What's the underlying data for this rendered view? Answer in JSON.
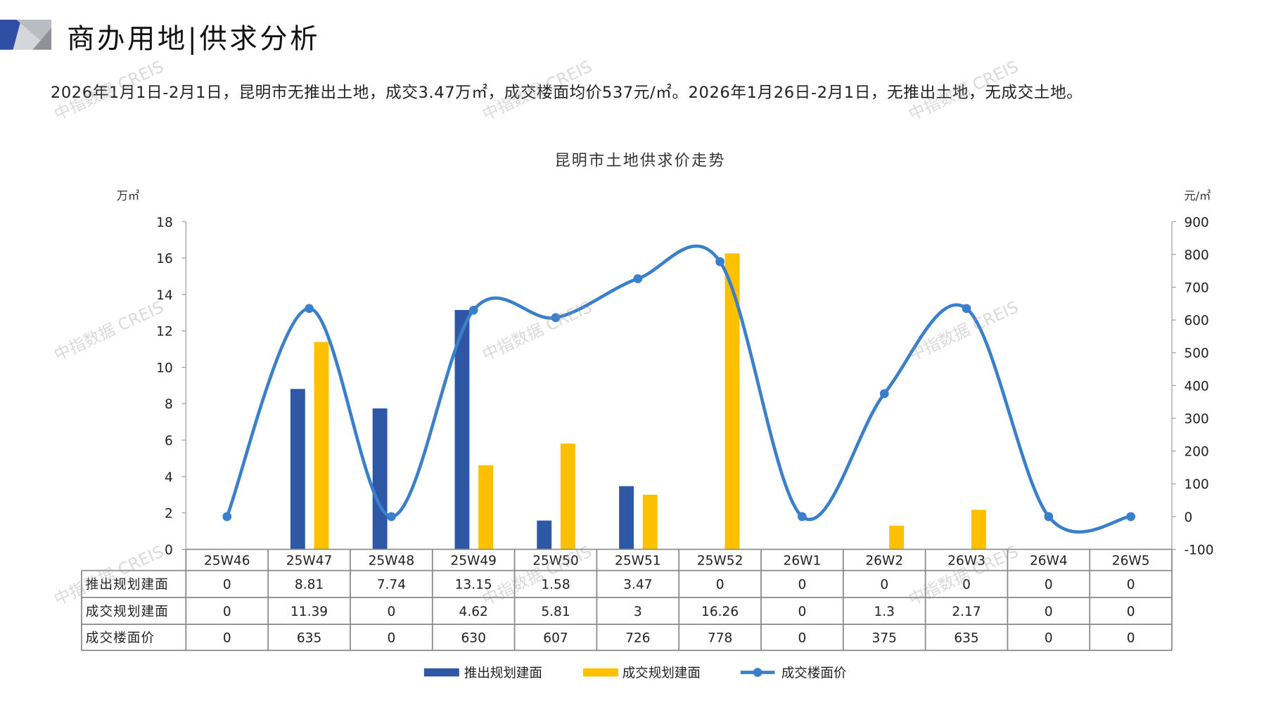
{
  "header": {
    "title": "商办用地|供求分析",
    "summary": "2026年1月1日-2月1日，昆明市无推出土地，成交3.47万㎡，成交楼面均价537元/㎡。2026年1月26日-2月1日，无推出土地，无成交土地。"
  },
  "watermark": "中指数据 CREIS",
  "chart_data": {
    "type": "bar+line",
    "title": "昆明市土地供求价走势",
    "ylabel_left": "万㎡",
    "ylabel_right": "元/㎡",
    "ylim_left": [
      0,
      18
    ],
    "yticks_left": [
      0,
      2,
      4,
      6,
      8,
      10,
      12,
      14,
      16,
      18
    ],
    "ylim_right": [
      -100,
      900
    ],
    "yticks_right": [
      -100,
      0,
      100,
      200,
      300,
      400,
      500,
      600,
      700,
      800,
      900
    ],
    "categories": [
      "25W46",
      "25W47",
      "25W48",
      "25W49",
      "25W50",
      "25W51",
      "25W52",
      "26W1",
      "26W2",
      "26W3",
      "26W4",
      "26W5"
    ],
    "series": [
      {
        "name": "推出规划建面",
        "type": "bar",
        "axis": "left",
        "color": "#2E58A6",
        "values": [
          0,
          8.81,
          7.74,
          13.15,
          1.58,
          3.47,
          0,
          0,
          0,
          0,
          0,
          0
        ],
        "labels": [
          "0",
          "8.81",
          "7.74",
          "13.15",
          "1.58",
          "3.47",
          "0",
          "0",
          "0",
          "0",
          "0",
          "0"
        ]
      },
      {
        "name": "成交规划建面",
        "type": "bar",
        "axis": "left",
        "color": "#FFC000",
        "values": [
          0,
          11.39,
          0,
          4.62,
          5.81,
          3,
          16.26,
          0,
          1.3,
          2.17,
          0,
          0
        ],
        "labels": [
          "0",
          "11.39",
          "0",
          "4.62",
          "5.81",
          "3",
          "16.26",
          "0",
          "1.3",
          "2.17",
          "0",
          "0"
        ]
      },
      {
        "name": "成交楼面价",
        "type": "line",
        "axis": "right",
        "color": "#3A7FCB",
        "smooth": true,
        "values": [
          0,
          635,
          0,
          630,
          607,
          726,
          778,
          0,
          375,
          635,
          0,
          0
        ],
        "labels": [
          "0",
          "635",
          "0",
          "630",
          "607",
          "726",
          "778",
          "0",
          "375",
          "635",
          "0",
          "0"
        ]
      }
    ],
    "data_table": true,
    "legend": "bottom",
    "grid": false
  }
}
